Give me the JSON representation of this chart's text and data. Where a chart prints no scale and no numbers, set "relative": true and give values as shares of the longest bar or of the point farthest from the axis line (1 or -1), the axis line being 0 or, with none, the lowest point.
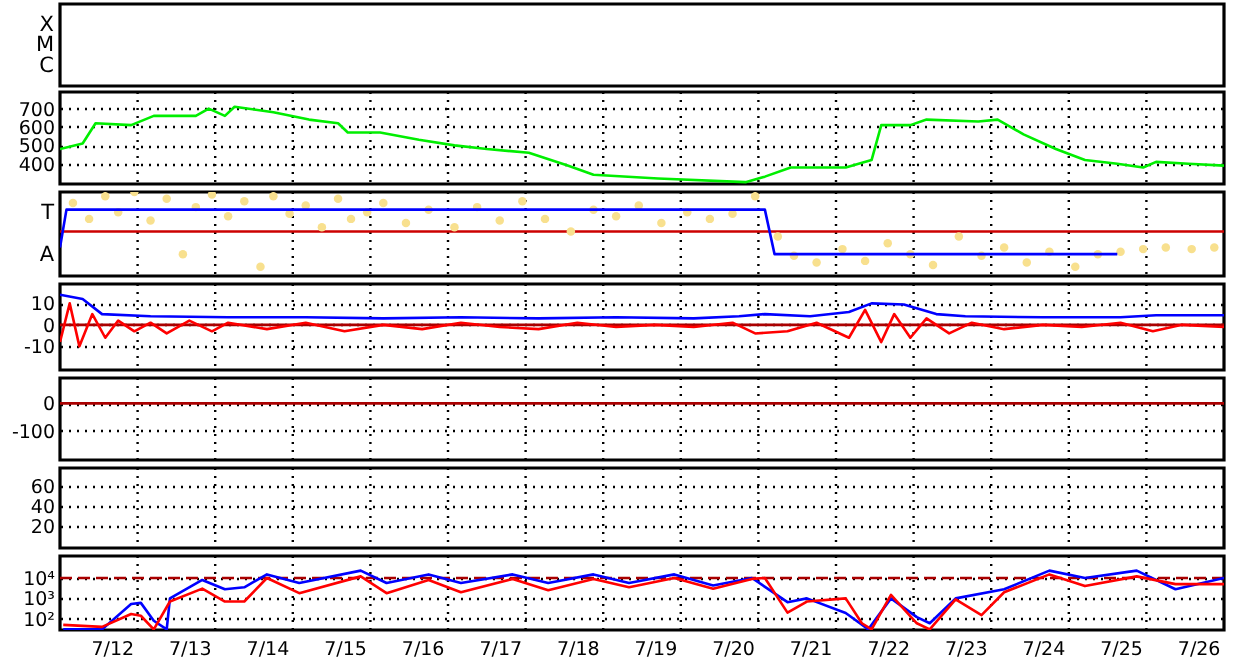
{
  "chart_data": [
    {
      "type": "other",
      "annotations": [
        "X",
        "M",
        "C"
      ]
    },
    {
      "type": "line",
      "series": [
        {
          "color": "#00ee00",
          "x": [
            "--07-11T20:00",
            "--07-12T03:00",
            "--07-12T07:00",
            "--07-12T18:00",
            "--07-13T01:00",
            "--07-13T14:00",
            "--07-13T18:00",
            "--07-13T23:00",
            "--07-14T02:00",
            "--07-14T14:00",
            "--07-15T01:00",
            "--07-15T10:00",
            "--07-15T13:00",
            "--07-15T23:00",
            "--07-16T11:00",
            "--07-16T22:00",
            "--07-17T08:00",
            "--07-17T21:00",
            "--07-18T09:00",
            "--07-18T17:00",
            "--07-19T13:00",
            "--07-20T16:00",
            "--07-20T22:00",
            "--07-21T06:00",
            "--07-21T23:00",
            "--07-22T07:00",
            "--07-22T10:00",
            "--07-22T19:00",
            "--07-23T00:00",
            "--07-23T16:00",
            "--07-23T22:00",
            "--07-24T06:00",
            "--07-24T16:00",
            "--07-25T01:00",
            "--07-25T11:00",
            "--07-25T19:00",
            "--07-25T23:00",
            "--07-26T09:00",
            "--07-26T20:00"
          ],
          "values": [
            480,
            510,
            620,
            610,
            660,
            660,
            700,
            660,
            710,
            680,
            640,
            620,
            570,
            570,
            530,
            500,
            480,
            460,
            390,
            340,
            320,
            300,
            330,
            380,
            380,
            420,
            610,
            610,
            640,
            630,
            640,
            560,
            480,
            420,
            400,
            380,
            410,
            400,
            390
          ]
        }
      ],
      "xlim": [
        "--07-11T20:00",
        "--07-26T20:00"
      ],
      "xticks": [
        {
          "value": "--07-12T12:00",
          "label": "7/12"
        },
        {
          "value": "--07-13T12:00",
          "label": "7/13"
        },
        {
          "value": "--07-14T12:00",
          "label": "7/14"
        },
        {
          "value": "--07-15T12:00",
          "label": "7/15"
        },
        {
          "value": "--07-16T12:00",
          "label": "7/16"
        },
        {
          "value": "--07-17T12:00",
          "label": "7/17"
        },
        {
          "value": "--07-18T12:00",
          "label": "7/18"
        },
        {
          "value": "--07-19T12:00",
          "label": "7/19"
        },
        {
          "value": "--07-20T12:00",
          "label": "7/20"
        },
        {
          "value": "--07-21T12:00",
          "label": "7/21"
        },
        {
          "value": "--07-22T12:00",
          "label": "7/22"
        },
        {
          "value": "--07-23T12:00",
          "label": "7/23"
        },
        {
          "value": "--07-24T12:00",
          "label": "7/24"
        },
        {
          "value": "--07-25T12:00",
          "label": "7/25"
        },
        {
          "value": "--07-26T12:00",
          "label": "7/26"
        },
        {
          "value": "--07-12T20:00",
          "label": null
        },
        {
          "value": "--07-13T20:00",
          "label": null
        },
        {
          "value": "--07-14T20:00",
          "label": null
        },
        {
          "value": "--07-15T20:00",
          "label": null
        },
        {
          "value": "--07-16T20:00",
          "label": null
        },
        {
          "value": "--07-17T20:00",
          "label": null
        },
        {
          "value": "--07-18T20:00",
          "label": null
        },
        {
          "value": "--07-19T20:00",
          "label": null
        },
        {
          "value": "--07-20T20:00",
          "label": null
        },
        {
          "value": "--07-21T20:00",
          "label": null
        },
        {
          "value": "--07-22T20:00",
          "label": null
        },
        {
          "value": "--07-23T20:00",
          "label": null
        },
        {
          "value": "--07-24T20:00",
          "label": null
        },
        {
          "value": "--07-25T20:00",
          "label": null
        }
      ],
      "ylim": [
        290,
        790
      ],
      "yticks": [
        400,
        500,
        600,
        700
      ],
      "grid": true,
      "tick_labels": "y"
    },
    {
      "type": "line",
      "relative": true,
      "series": [
        {
          "type": "scatter",
          "color": "#f8e08e",
          "x": [
            "--07-12T00:00",
            "--07-12T05:00",
            "--07-12T10:00",
            "--07-12T14:00",
            "--07-12T19:00",
            "--07-13T00:00",
            "--07-13T05:00",
            "--07-13T10:00",
            "--07-13T14:00",
            "--07-13T19:00",
            "--07-14T00:00",
            "--07-14T05:00",
            "--07-14T10:00",
            "--07-14T14:00",
            "--07-14T19:00",
            "--07-15T00:00",
            "--07-15T05:00",
            "--07-15T10:00",
            "--07-15T14:00",
            "--07-15T19:00",
            "--07-16T00:00",
            "--07-16T07:00",
            "--07-16T14:00",
            "--07-16T22:00",
            "--07-17T05:00",
            "--07-17T12:00",
            "--07-17T19:00",
            "--07-18T02:00",
            "--07-18T10:00",
            "--07-18T17:00",
            "--07-19T00:00",
            "--07-19T07:00",
            "--07-19T14:00",
            "--07-19T22:00",
            "--07-20T05:00",
            "--07-20T12:00",
            "--07-20T19:00",
            "--07-21T02:00",
            "--07-21T07:00",
            "--07-21T14:00",
            "--07-21T22:00",
            "--07-22T05:00",
            "--07-22T12:00",
            "--07-22T19:00",
            "--07-23T02:00",
            "--07-23T10:00",
            "--07-23T17:00",
            "--07-24T00:00",
            "--07-24T07:00",
            "--07-24T14:00",
            "--07-24T22:00",
            "--07-25T05:00",
            "--07-25T12:00",
            "--07-25T19:00",
            "--07-26T02:00",
            "--07-26T10:00",
            "--07-26T17:00"
          ],
          "values": [
            0.87,
            0.68,
            0.95,
            0.76,
            1,
            0.66,
            0.92,
            0.26,
            0.82,
            0.97,
            0.71,
            0.89,
            0.11,
            0.95,
            0.74,
            0.84,
            0.58,
            0.92,
            0.68,
            0.76,
            0.87,
            0.63,
            0.79,
            0.58,
            0.82,
            0.66,
            0.89,
            0.68,
            0.53,
            0.79,
            0.71,
            0.84,
            0.63,
            0.76,
            0.68,
            0.74,
            0.95,
            0.47,
            0.24,
            0.16,
            0.32,
            0.18,
            0.39,
            0.26,
            0.13,
            0.47,
            0.24,
            0.34,
            0.16,
            0.29,
            0.11,
            0.26,
            0.29,
            0.32,
            0.34,
            0.32,
            0.34
          ]
        },
        {
          "type": "line",
          "color": "#0000ff",
          "x": [
            "--07-11T20:00",
            "--07-11T22:00",
            "--07-20T22:00",
            "--07-21T01:00",
            "--07-25T11:00"
          ],
          "values": [
            0.34,
            0.79,
            0.79,
            0.26,
            0.26
          ]
        }
      ],
      "annotations": [
        "T",
        "A"
      ],
      "ref_lines": [
        {
          "axis": "y",
          "value": 0.53,
          "color": "#cc0000"
        }
      ],
      "xlim": [
        "--07-11T20:00",
        "--07-26T20:00"
      ],
      "xticks": [
        {
          "value": "--07-12T12:00",
          "label": "7/12"
        },
        {
          "value": "--07-13T12:00",
          "label": "7/13"
        },
        {
          "value": "--07-14T12:00",
          "label": "7/14"
        },
        {
          "value": "--07-15T12:00",
          "label": "7/15"
        },
        {
          "value": "--07-16T12:00",
          "label": "7/16"
        },
        {
          "value": "--07-17T12:00",
          "label": "7/17"
        },
        {
          "value": "--07-18T12:00",
          "label": "7/18"
        },
        {
          "value": "--07-19T12:00",
          "label": "7/19"
        },
        {
          "value": "--07-20T12:00",
          "label": "7/20"
        },
        {
          "value": "--07-21T12:00",
          "label": "7/21"
        },
        {
          "value": "--07-22T12:00",
          "label": "7/22"
        },
        {
          "value": "--07-23T12:00",
          "label": "7/23"
        },
        {
          "value": "--07-24T12:00",
          "label": "7/24"
        },
        {
          "value": "--07-25T12:00",
          "label": "7/25"
        },
        {
          "value": "--07-26T12:00",
          "label": "7/26"
        },
        {
          "value": "--07-12T20:00",
          "label": null
        },
        {
          "value": "--07-13T20:00",
          "label": null
        },
        {
          "value": "--07-14T20:00",
          "label": null
        },
        {
          "value": "--07-15T20:00",
          "label": null
        },
        {
          "value": "--07-16T20:00",
          "label": null
        },
        {
          "value": "--07-17T20:00",
          "label": null
        },
        {
          "value": "--07-18T20:00",
          "label": null
        },
        {
          "value": "--07-19T20:00",
          "label": null
        },
        {
          "value": "--07-20T20:00",
          "label": null
        },
        {
          "value": "--07-21T20:00",
          "label": null
        },
        {
          "value": "--07-22T20:00",
          "label": null
        },
        {
          "value": "--07-23T20:00",
          "label": null
        },
        {
          "value": "--07-24T20:00",
          "label": null
        },
        {
          "value": "--07-25T20:00",
          "label": null
        }
      ],
      "grid": "x",
      "tick_labels": "y"
    },
    {
      "type": "line",
      "series": [
        {
          "color": "#ff0000",
          "x": [
            "--07-11T20:00",
            "--07-11T23:00",
            "--07-12T02:00",
            "--07-12T06:00",
            "--07-12T10:00",
            "--07-12T14:00",
            "--07-12T19:00",
            "--07-13T00:00",
            "--07-13T05:00",
            "--07-13T12:00",
            "--07-13T19:00",
            "--07-14T00:00",
            "--07-14T12:00",
            "--07-15T00:00",
            "--07-15T12:00",
            "--07-16T00:00",
            "--07-16T12:00",
            "--07-17T00:00",
            "--07-17T12:00",
            "--07-18T00:00",
            "--07-18T12:00",
            "--07-19T00:00",
            "--07-19T12:00",
            "--07-20T00:00",
            "--07-20T12:00",
            "--07-20T19:00",
            "--07-21T05:00",
            "--07-21T14:00",
            "--07-22T00:00",
            "--07-22T05:00",
            "--07-22T10:00",
            "--07-22T14:00",
            "--07-22T19:00",
            "--07-23T00:00",
            "--07-23T07:00",
            "--07-23T14:00",
            "--07-24T00:00",
            "--07-24T12:00",
            "--07-25T00:00",
            "--07-25T12:00",
            "--07-25T22:00",
            "--07-26T07:00",
            "--07-26T20:00"
          ],
          "values": [
            -8,
            10,
            -10,
            5,
            -6,
            2,
            -3,
            1,
            -4,
            2,
            -3,
            1,
            -2,
            1,
            -3,
            0,
            -2,
            1,
            -1,
            -2,
            1,
            -1,
            0,
            -1,
            1,
            -4,
            -3,
            1,
            -6,
            7,
            -8,
            5,
            -6,
            3,
            -4,
            1,
            -2,
            0,
            -1,
            1,
            -3,
            0,
            -1
          ]
        },
        {
          "color": "#0000ff",
          "x": [
            "--07-11T20:00",
            "--07-12T03:00",
            "--07-12T09:00",
            "--07-13T00:00",
            "--07-14T00:00",
            "--07-15T00:00",
            "--07-16T00:00",
            "--07-17T00:00",
            "--07-18T00:00",
            "--07-19T00:00",
            "--07-20T00:00",
            "--07-20T14:00",
            "--07-20T22:00",
            "--07-21T12:00",
            "--07-22T00:00",
            "--07-22T07:00",
            "--07-22T17:00",
            "--07-23T03:00",
            "--07-23T12:00",
            "--07-24T12:00",
            "--07-25T12:00",
            "--07-25T23:00",
            "--07-26T20:00"
          ],
          "values": [
            14,
            12,
            5,
            4,
            3.5,
            3.5,
            3,
            3.5,
            3,
            3.5,
            3,
            4,
            5,
            4,
            6,
            10,
            9.5,
            5,
            4,
            3.5,
            3.5,
            4.5,
            4.5
          ]
        }
      ],
      "ref_lines": [
        {
          "axis": "y",
          "value": 0,
          "color": "#aa0000"
        }
      ],
      "xlim": [
        "--07-11T20:00",
        "--07-26T20:00"
      ],
      "xticks": [
        {
          "value": "--07-12T12:00",
          "label": "7/12"
        },
        {
          "value": "--07-13T12:00",
          "label": "7/13"
        },
        {
          "value": "--07-14T12:00",
          "label": "7/14"
        },
        {
          "value": "--07-15T12:00",
          "label": "7/15"
        },
        {
          "value": "--07-16T12:00",
          "label": "7/16"
        },
        {
          "value": "--07-17T12:00",
          "label": "7/17"
        },
        {
          "value": "--07-18T12:00",
          "label": "7/18"
        },
        {
          "value": "--07-19T12:00",
          "label": "7/19"
        },
        {
          "value": "--07-20T12:00",
          "label": "7/20"
        },
        {
          "value": "--07-21T12:00",
          "label": "7/21"
        },
        {
          "value": "--07-22T12:00",
          "label": "7/22"
        },
        {
          "value": "--07-23T12:00",
          "label": "7/23"
        },
        {
          "value": "--07-24T12:00",
          "label": "7/24"
        },
        {
          "value": "--07-25T12:00",
          "label": "7/25"
        },
        {
          "value": "--07-26T12:00",
          "label": "7/26"
        },
        {
          "value": "--07-12T20:00",
          "label": null
        },
        {
          "value": "--07-13T20:00",
          "label": null
        },
        {
          "value": "--07-14T20:00",
          "label": null
        },
        {
          "value": "--07-15T20:00",
          "label": null
        },
        {
          "value": "--07-16T20:00",
          "label": null
        },
        {
          "value": "--07-17T20:00",
          "label": null
        },
        {
          "value": "--07-18T20:00",
          "label": null
        },
        {
          "value": "--07-19T20:00",
          "label": null
        },
        {
          "value": "--07-20T20:00",
          "label": null
        },
        {
          "value": "--07-21T20:00",
          "label": null
        },
        {
          "value": "--07-22T20:00",
          "label": null
        },
        {
          "value": "--07-23T20:00",
          "label": null
        },
        {
          "value": "--07-24T20:00",
          "label": null
        },
        {
          "value": "--07-25T20:00",
          "label": null
        }
      ],
      "ylim": [
        -21,
        19
      ],
      "yticks": [
        -10,
        0,
        10
      ],
      "grid": true,
      "tick_labels": "y"
    },
    {
      "type": "line",
      "ref_lines": [
        {
          "axis": "y",
          "value": 0,
          "color": "#aa0000"
        }
      ],
      "xlim": [
        "--07-11T20:00",
        "--07-26T20:00"
      ],
      "xticks": [
        {
          "value": "--07-12T12:00",
          "label": "7/12"
        },
        {
          "value": "--07-13T12:00",
          "label": "7/13"
        },
        {
          "value": "--07-14T12:00",
          "label": "7/14"
        },
        {
          "value": "--07-15T12:00",
          "label": "7/15"
        },
        {
          "value": "--07-16T12:00",
          "label": "7/16"
        },
        {
          "value": "--07-17T12:00",
          "label": "7/17"
        },
        {
          "value": "--07-18T12:00",
          "label": "7/18"
        },
        {
          "value": "--07-19T12:00",
          "label": "7/19"
        },
        {
          "value": "--07-20T12:00",
          "label": "7/20"
        },
        {
          "value": "--07-21T12:00",
          "label": "7/21"
        },
        {
          "value": "--07-22T12:00",
          "label": "7/22"
        },
        {
          "value": "--07-23T12:00",
          "label": "7/23"
        },
        {
          "value": "--07-24T12:00",
          "label": "7/24"
        },
        {
          "value": "--07-25T12:00",
          "label": "7/25"
        },
        {
          "value": "--07-26T12:00",
          "label": "7/26"
        },
        {
          "value": "--07-12T20:00",
          "label": null
        },
        {
          "value": "--07-13T20:00",
          "label": null
        },
        {
          "value": "--07-14T20:00",
          "label": null
        },
        {
          "value": "--07-15T20:00",
          "label": null
        },
        {
          "value": "--07-16T20:00",
          "label": null
        },
        {
          "value": "--07-17T20:00",
          "label": null
        },
        {
          "value": "--07-18T20:00",
          "label": null
        },
        {
          "value": "--07-19T20:00",
          "label": null
        },
        {
          "value": "--07-20T20:00",
          "label": null
        },
        {
          "value": "--07-21T20:00",
          "label": null
        },
        {
          "value": "--07-22T20:00",
          "label": null
        },
        {
          "value": "--07-23T20:00",
          "label": null
        },
        {
          "value": "--07-24T20:00",
          "label": null
        },
        {
          "value": "--07-25T20:00",
          "label": null
        }
      ],
      "ylim": [
        -207,
        93
      ],
      "yticks": [
        -100,
        0
      ],
      "grid": true,
      "tick_labels": "y"
    },
    {
      "type": "line",
      "xlim": [
        "--07-11T20:00",
        "--07-26T20:00"
      ],
      "xticks": [
        {
          "value": "--07-12T12:00",
          "label": "7/12"
        },
        {
          "value": "--07-13T12:00",
          "label": "7/13"
        },
        {
          "value": "--07-14T12:00",
          "label": "7/14"
        },
        {
          "value": "--07-15T12:00",
          "label": "7/15"
        },
        {
          "value": "--07-16T12:00",
          "label": "7/16"
        },
        {
          "value": "--07-17T12:00",
          "label": "7/17"
        },
        {
          "value": "--07-18T12:00",
          "label": "7/18"
        },
        {
          "value": "--07-19T12:00",
          "label": "7/19"
        },
        {
          "value": "--07-20T12:00",
          "label": "7/20"
        },
        {
          "value": "--07-21T12:00",
          "label": "7/21"
        },
        {
          "value": "--07-22T12:00",
          "label": "7/22"
        },
        {
          "value": "--07-23T12:00",
          "label": "7/23"
        },
        {
          "value": "--07-24T12:00",
          "label": "7/24"
        },
        {
          "value": "--07-25T12:00",
          "label": "7/25"
        },
        {
          "value": "--07-26T12:00",
          "label": "7/26"
        },
        {
          "value": "--07-12T20:00",
          "label": null
        },
        {
          "value": "--07-13T20:00",
          "label": null
        },
        {
          "value": "--07-14T20:00",
          "label": null
        },
        {
          "value": "--07-15T20:00",
          "label": null
        },
        {
          "value": "--07-16T20:00",
          "label": null
        },
        {
          "value": "--07-17T20:00",
          "label": null
        },
        {
          "value": "--07-18T20:00",
          "label": null
        },
        {
          "value": "--07-19T20:00",
          "label": null
        },
        {
          "value": "--07-20T20:00",
          "label": null
        },
        {
          "value": "--07-21T20:00",
          "label": null
        },
        {
          "value": "--07-22T20:00",
          "label": null
        },
        {
          "value": "--07-23T20:00",
          "label": null
        },
        {
          "value": "--07-24T20:00",
          "label": null
        },
        {
          "value": "--07-25T20:00",
          "label": null
        }
      ],
      "ylim": [
        -2,
        78
      ],
      "yticks": [
        20,
        40,
        60
      ],
      "grid": true,
      "tick_labels": "y"
    },
    {
      "type": "line",
      "log": "y",
      "series": [
        {
          "color": "#0000ff",
          "x": [
            "--07-11T21:00",
            "--07-12T09:00",
            "--07-12T18:00",
            "--07-12T21:00",
            "--07-13T01:00",
            "--07-13T05:00",
            "--07-13T06:00",
            "--07-13T16:00",
            "--07-13T23:00",
            "--07-14T05:00",
            "--07-14T12:00",
            "--07-14T22:00",
            "--07-15T17:00",
            "--07-16T01:00",
            "--07-16T14:00",
            "--07-17T00:00",
            "--07-17T16:00",
            "--07-18T03:00",
            "--07-18T17:00",
            "--07-19T04:00",
            "--07-19T18:00",
            "--07-20T06:00",
            "--07-20T18:00",
            "--07-21T05:00",
            "--07-21T11:00",
            "--07-21T23:00",
            "--07-22T06:00",
            "--07-22T13:00",
            "--07-22T21:00",
            "--07-23T01:00",
            "--07-23T09:00",
            "--07-24T00:00",
            "--07-24T14:00",
            "--07-25T01:00",
            "--07-25T17:00",
            "--07-26T05:00",
            "--07-26T20:00"
          ],
          "values": [
            30,
            30,
            530,
            600,
            80,
            30,
            1000,
            8000,
            2800,
            3500,
            15000,
            5700,
            23000,
            5700,
            15000,
            5700,
            15000,
            5700,
            15000,
            5700,
            15000,
            4300,
            10000,
            650,
            1000,
            190,
            30,
            1000,
            120,
            60,
            1000,
            2800,
            23000,
            10000,
            23000,
            2800,
            10000
          ]
        },
        {
          "color": "#ff0000",
          "x": [
            "--07-11T21:00",
            "--07-12T09:00",
            "--07-12T18:00",
            "--07-12T21:00",
            "--07-13T01:00",
            "--07-13T06:00",
            "--07-13T16:00",
            "--07-13T23:00",
            "--07-14T05:00",
            "--07-14T12:00",
            "--07-14T22:00",
            "--07-15T17:00",
            "--07-16T01:00",
            "--07-16T14:00",
            "--07-17T00:00",
            "--07-17T16:00",
            "--07-18T03:00",
            "--07-18T17:00",
            "--07-19T04:00",
            "--07-19T18:00",
            "--07-20T06:00",
            "--07-20T18:00",
            "--07-20T22:00",
            "--07-21T05:00",
            "--07-21T11:00",
            "--07-21T23:00",
            "--07-22T04:00",
            "--07-22T07:00",
            "--07-22T13:00",
            "--07-22T21:00",
            "--07-23T01:00",
            "--07-23T09:00",
            "--07-23T17:00",
            "--07-24T00:00",
            "--07-24T14:00",
            "--07-25T01:00",
            "--07-25T17:00",
            "--07-26T05:00",
            "--07-26T20:00"
          ],
          "values": [
            50,
            40,
            170,
            140,
            30,
            700,
            3000,
            700,
            700,
            10000,
            1800,
            12000,
            1800,
            8000,
            2000,
            9000,
            2500,
            9000,
            3500,
            10000,
            3000,
            9000,
            10000,
            200,
            700,
            1000,
            60,
            30,
            1500,
            60,
            30,
            900,
            150,
            2000,
            15000,
            4000,
            12000,
            5000,
            5000
          ]
        }
      ],
      "ref_lines": [
        {
          "axis": "y",
          "value": 10000,
          "color": "#aa0000",
          "line_style": "dashed"
        }
      ],
      "xlim": [
        "--07-11T20:00",
        "--07-26T20:00"
      ],
      "xticks": [
        {
          "value": "--07-12T12:00",
          "label": "7/12"
        },
        {
          "value": "--07-13T12:00",
          "label": "7/13"
        },
        {
          "value": "--07-14T12:00",
          "label": "7/14"
        },
        {
          "value": "--07-15T12:00",
          "label": "7/15"
        },
        {
          "value": "--07-16T12:00",
          "label": "7/16"
        },
        {
          "value": "--07-17T12:00",
          "label": "7/17"
        },
        {
          "value": "--07-18T12:00",
          "label": "7/18"
        },
        {
          "value": "--07-19T12:00",
          "label": "7/19"
        },
        {
          "value": "--07-20T12:00",
          "label": "7/20"
        },
        {
          "value": "--07-21T12:00",
          "label": "7/21"
        },
        {
          "value": "--07-22T12:00",
          "label": "7/22"
        },
        {
          "value": "--07-23T12:00",
          "label": "7/23"
        },
        {
          "value": "--07-24T12:00",
          "label": "7/24"
        },
        {
          "value": "--07-25T12:00",
          "label": "7/25"
        },
        {
          "value": "--07-26T12:00",
          "label": "7/26"
        },
        {
          "value": "--07-12T20:00",
          "label": null
        },
        {
          "value": "--07-13T20:00",
          "label": null
        },
        {
          "value": "--07-14T20:00",
          "label": null
        },
        {
          "value": "--07-15T20:00",
          "label": null
        },
        {
          "value": "--07-16T20:00",
          "label": null
        },
        {
          "value": "--07-17T20:00",
          "label": null
        },
        {
          "value": "--07-18T20:00",
          "label": null
        },
        {
          "value": "--07-19T20:00",
          "label": null
        },
        {
          "value": "--07-20T20:00",
          "label": null
        },
        {
          "value": "--07-21T20:00",
          "label": null
        },
        {
          "value": "--07-22T20:00",
          "label": null
        },
        {
          "value": "--07-23T20:00",
          "label": null
        },
        {
          "value": "--07-24T20:00",
          "label": null
        },
        {
          "value": "--07-25T20:00",
          "label": null
        }
      ],
      "ylim": [
        28,
        120000
      ],
      "yticks": [
        {
          "value": 100,
          "label": "10²"
        },
        {
          "value": 1000,
          "label": "10³"
        },
        {
          "value": 10000,
          "label": "10⁴"
        }
      ],
      "grid": true
    }
  ]
}
